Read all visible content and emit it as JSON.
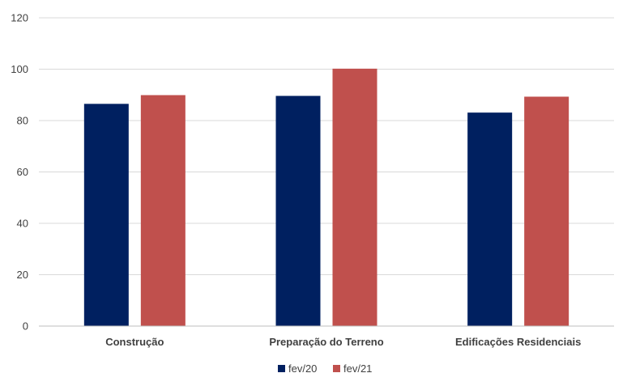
{
  "chart_data": {
    "type": "bar",
    "categories": [
      "Construção",
      "Preparação do Terreno",
      "Edificações Residenciais"
    ],
    "series": [
      {
        "name": "fev/20",
        "values": [
          86.5,
          89.6,
          83.1
        ]
      },
      {
        "name": "fev/21",
        "values": [
          89.9,
          100.2,
          89.3
        ]
      }
    ],
    "ylim": [
      0,
      120
    ],
    "yticks": [
      "0",
      "20",
      "40",
      "60",
      "80",
      "100",
      "120"
    ],
    "grid": true,
    "legend_position": "bottom",
    "colors": {
      "fev/20": "#002060",
      "fev/21": "#C0504D"
    }
  }
}
